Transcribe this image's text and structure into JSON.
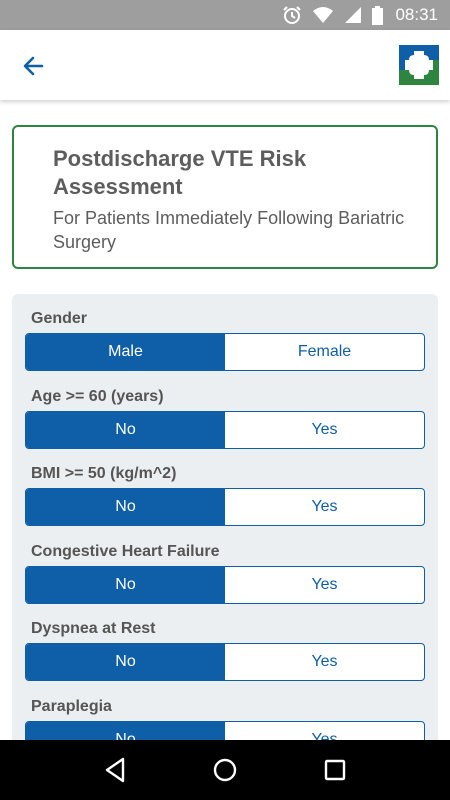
{
  "status_bar": {
    "time": "08:31",
    "icons": [
      "alarm-icon",
      "wifi-icon",
      "signal-icon",
      "battery-icon"
    ]
  },
  "app_bar": {
    "back_icon": "arrow-left-icon",
    "logo": "clinic-cross-logo",
    "accent_color": "#0f5fa8",
    "logo_colors": [
      "#0f5fa8",
      "#2e8540"
    ]
  },
  "title_card": {
    "title": "Postdischarge VTE Risk Assessment",
    "subtitle": "For Patients Immediately Following Bariatric Surgery",
    "border_color": "#2e8540"
  },
  "questions": [
    {
      "label": "Gender",
      "options": [
        "Male",
        "Female"
      ],
      "selected": "Male"
    },
    {
      "label": "Age >= 60 (years)",
      "options": [
        "No",
        "Yes"
      ],
      "selected": "No"
    },
    {
      "label": "BMI >= 50 (kg/m^2)",
      "options": [
        "No",
        "Yes"
      ],
      "selected": "No"
    },
    {
      "label": "Congestive Heart Failure",
      "options": [
        "No",
        "Yes"
      ],
      "selected": "No"
    },
    {
      "label": "Dyspnea at Rest",
      "options": [
        "No",
        "Yes"
      ],
      "selected": "No"
    },
    {
      "label": "Paraplegia",
      "options": [
        "No",
        "Yes"
      ],
      "selected": "No"
    }
  ],
  "nav_bar": {
    "buttons": [
      "back-triangle-icon",
      "home-circle-icon",
      "recents-square-icon"
    ]
  }
}
